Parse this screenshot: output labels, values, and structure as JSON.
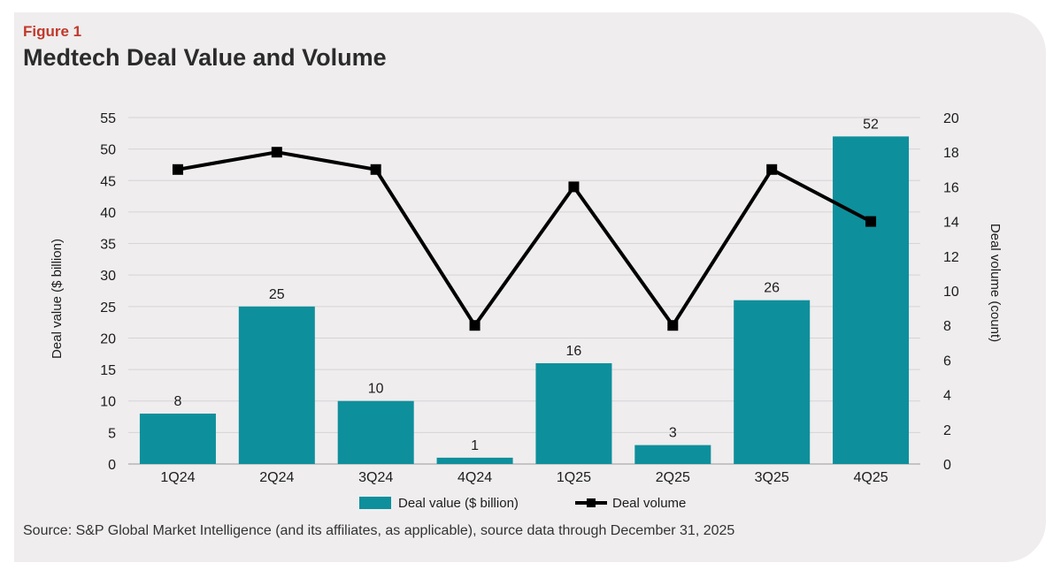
{
  "figure_label": "Figure 1",
  "title": "Medtech Deal Value and Volume",
  "source": "Source: S&P Global Market Intelligence (and its affiliates, as applicable), source data through December 31, 2025",
  "chart_data": {
    "type": "bar",
    "categories": [
      "1Q24",
      "2Q24",
      "3Q24",
      "4Q24",
      "1Q25",
      "2Q25",
      "3Q25",
      "4Q25"
    ],
    "series": [
      {
        "name": "Deal value ($ billion)",
        "type": "bar",
        "axis": "left",
        "values": [
          8,
          25,
          10,
          1,
          16,
          3,
          26,
          52
        ],
        "color": "#0e8f9c"
      },
      {
        "name": "Deal volume",
        "type": "line",
        "axis": "right",
        "values": [
          17,
          18,
          17,
          8,
          16,
          8,
          17,
          14
        ],
        "color": "#000000"
      }
    ],
    "data_labels": [
      "8",
      "25",
      "10",
      "1",
      "16",
      "3",
      "26",
      "52"
    ],
    "ylabel_left": "Deal value ($ billion)",
    "ylabel_right": "Deal volume (count)",
    "ylim_left": [
      0,
      55
    ],
    "yticks_left": [
      0,
      5,
      10,
      15,
      20,
      25,
      30,
      35,
      40,
      45,
      50,
      55
    ],
    "ylim_right": [
      0,
      20
    ],
    "yticks_right": [
      0,
      2,
      4,
      6,
      8,
      10,
      12,
      14,
      16,
      18,
      20
    ],
    "grid": true,
    "legend": "bottom"
  }
}
